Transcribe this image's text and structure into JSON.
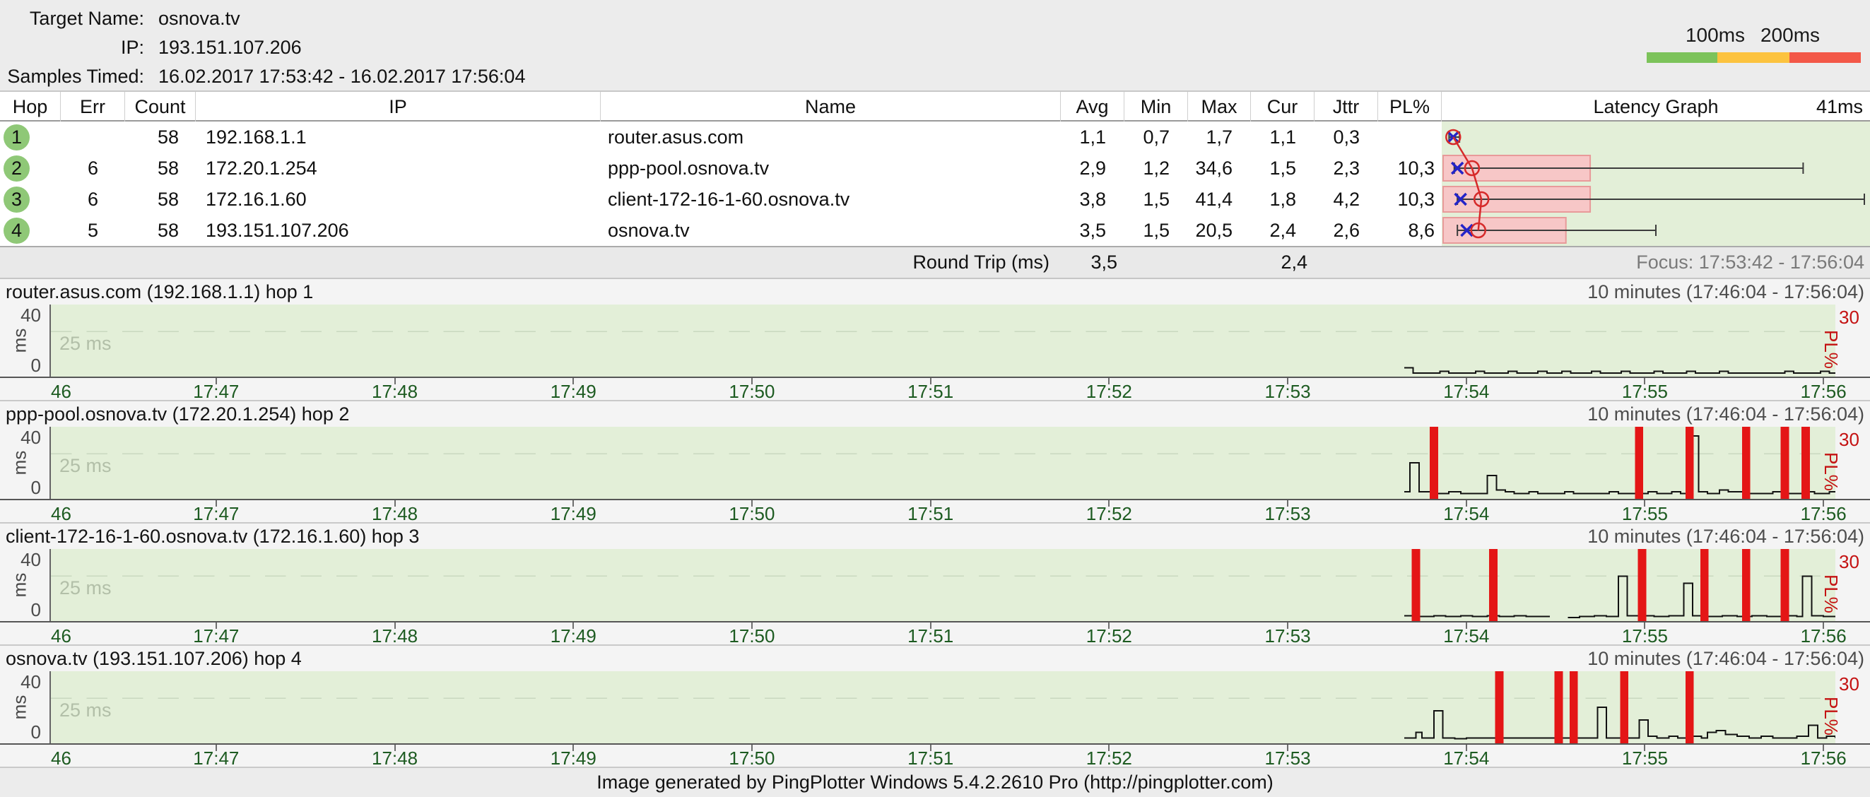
{
  "header": {
    "fields": [
      {
        "label": "Target Name:",
        "value": "osnova.tv"
      },
      {
        "label": "IP:",
        "value": "193.151.107.206"
      },
      {
        "label": "Samples Timed:",
        "value": "16.02.2017 17:53:42 - 16.02.2017 17:56:04"
      }
    ],
    "legend": {
      "label_100": "100ms",
      "label_200": "200ms",
      "good_color": "#7cc35a",
      "warn_color": "#fcc33f",
      "bad_color": "#f35848"
    }
  },
  "table": {
    "columns": {
      "hop": "Hop",
      "err": "Err",
      "count": "Count",
      "ip": "IP",
      "name": "Name",
      "avg": "Avg",
      "min": "Min",
      "max": "Max",
      "cur": "Cur",
      "jttr": "Jttr",
      "pl": "PL%",
      "latency": "Latency Graph",
      "scale": "41ms"
    },
    "rows": [
      {
        "hop": "1",
        "err": "",
        "count": "58",
        "ip": "192.168.1.1",
        "name": "router.asus.com",
        "avg": "1,1",
        "min": "0,7",
        "max": "1,7",
        "cur": "1,1",
        "jttr": "0,3",
        "pl": ""
      },
      {
        "hop": "2",
        "err": "6",
        "count": "58",
        "ip": "172.20.1.254",
        "name": "ppp-pool.osnova.tv",
        "avg": "2,9",
        "min": "1,2",
        "max": "34,6",
        "cur": "1,5",
        "jttr": "2,3",
        "pl": "10,3"
      },
      {
        "hop": "3",
        "err": "6",
        "count": "58",
        "ip": "172.16.1.60",
        "name": "client-172-16-1-60.osnova.tv",
        "avg": "3,8",
        "min": "1,5",
        "max": "41,4",
        "cur": "1,8",
        "jttr": "4,2",
        "pl": "10,3"
      },
      {
        "hop": "4",
        "err": "5",
        "count": "58",
        "ip": "193.151.107.206",
        "name": "osnova.tv",
        "avg": "3,5",
        "min": "1,5",
        "max": "20,5",
        "cur": "2,4",
        "jttr": "2,6",
        "pl": "8,6"
      }
    ],
    "summary": {
      "label": "Round Trip (ms)",
      "avg": "3,5",
      "cur": "2,4",
      "focus": "Focus: 17:53:42 - 17:56:04"
    }
  },
  "colors": {
    "loss": "#e41616",
    "trace": "#111111",
    "gridline": "#c9d8bf",
    "pink_fill": "#f7c7c7",
    "pink_stroke": "#e89a9a",
    "whisker": "#3c3c3c",
    "cur_marker": "#2424c8",
    "avg_marker": "#d62a2a",
    "plot_bg": "#e3efd8"
  },
  "chart_data": [
    {
      "type": "latency-summary-bars",
      "scale_label": "41ms",
      "scale_ms": 41,
      "pl_scale_max": 30,
      "hops": [
        {
          "hop": 1,
          "min": 0.7,
          "max": 1.7,
          "avg": 1.1,
          "cur": 1.1,
          "pl": 0
        },
        {
          "hop": 2,
          "min": 1.2,
          "max": 34.6,
          "avg": 2.9,
          "cur": 1.5,
          "pl": 10.3
        },
        {
          "hop": 3,
          "min": 1.5,
          "max": 41.4,
          "avg": 3.8,
          "cur": 1.8,
          "pl": 10.3
        },
        {
          "hop": 4,
          "min": 1.5,
          "max": 20.5,
          "avg": 3.5,
          "cur": 2.4,
          "pl": 8.6
        }
      ]
    },
    {
      "type": "line",
      "title": "router.asus.com (192.168.1.1) hop 1",
      "range_label": "10 minutes (17:46:04 - 17:56:04)",
      "ylabel": "ms",
      "ylim": [
        0,
        40
      ],
      "y_top_label": "40",
      "y_bottom_label": "0",
      "gridline_ms": 25,
      "gridline_label": "25 ms",
      "pl_max_label": "30",
      "pl_axis_label": "PL%",
      "x_start_label": "46",
      "x_ticks": [
        "17:47",
        "17:48",
        "17:49",
        "17:50",
        "17:51",
        "17:52",
        "17:53",
        "17:54",
        "17:55",
        "17:56"
      ],
      "tick_seconds": [
        56,
        116,
        176,
        236,
        296,
        356,
        416,
        476,
        536,
        596
      ],
      "x_range_seconds": [
        0,
        600
      ],
      "loss_seconds": [],
      "segments": [
        [
          [
            455,
            5
          ],
          [
            458,
            2
          ],
          [
            465,
            2
          ],
          [
            467,
            3
          ],
          [
            470,
            2
          ],
          [
            477,
            2
          ],
          [
            479,
            3
          ],
          [
            482,
            2
          ],
          [
            488,
            2
          ],
          [
            490,
            3
          ],
          [
            493,
            2
          ],
          [
            498,
            2
          ],
          [
            500,
            3
          ],
          [
            503,
            2
          ],
          [
            508,
            3
          ],
          [
            511,
            2
          ],
          [
            516,
            2
          ],
          [
            518,
            3
          ],
          [
            521,
            2
          ],
          [
            526,
            2
          ],
          [
            528,
            3
          ],
          [
            531,
            2
          ],
          [
            537,
            2
          ],
          [
            539,
            3
          ],
          [
            542,
            2
          ],
          [
            548,
            2
          ],
          [
            550,
            3
          ],
          [
            553,
            2
          ],
          [
            559,
            2
          ],
          [
            561,
            3
          ],
          [
            564,
            2
          ],
          [
            571,
            2
          ],
          [
            577,
            2
          ],
          [
            583,
            3
          ],
          [
            586,
            2
          ],
          [
            592,
            2
          ],
          [
            595,
            3
          ],
          [
            598,
            2
          ],
          [
            600,
            2
          ]
        ]
      ]
    },
    {
      "type": "line",
      "title": "ppp-pool.osnova.tv (172.20.1.254) hop 2",
      "range_label": "10 minutes (17:46:04 - 17:56:04)",
      "ylabel": "ms",
      "ylim": [
        0,
        40
      ],
      "y_top_label": "40",
      "y_bottom_label": "0",
      "gridline_ms": 25,
      "gridline_label": "25 ms",
      "pl_max_label": "30",
      "pl_axis_label": "PL%",
      "x_start_label": "46",
      "x_ticks": [
        "17:47",
        "17:48",
        "17:49",
        "17:50",
        "17:51",
        "17:52",
        "17:53",
        "17:54",
        "17:55",
        "17:56"
      ],
      "tick_seconds": [
        56,
        116,
        176,
        236,
        296,
        356,
        416,
        476,
        536,
        596
      ],
      "x_range_seconds": [
        0,
        600
      ],
      "loss_seconds": [
        465,
        534,
        551,
        570,
        583,
        590
      ],
      "segments": [
        [
          [
            455,
            4
          ],
          [
            457,
            20
          ],
          [
            460,
            4
          ],
          [
            464,
            3
          ],
          [
            470,
            4
          ],
          [
            474,
            3
          ],
          [
            483,
            13
          ],
          [
            486,
            5
          ],
          [
            489,
            4
          ],
          [
            492,
            3
          ],
          [
            497,
            4
          ],
          [
            500,
            3
          ],
          [
            506,
            3
          ],
          [
            509,
            4
          ],
          [
            512,
            3
          ],
          [
            519,
            3
          ],
          [
            524,
            4
          ],
          [
            527,
            3
          ],
          [
            533,
            3
          ],
          [
            537,
            4
          ],
          [
            540,
            3
          ],
          [
            545,
            4
          ],
          [
            548,
            3
          ],
          [
            551,
            35
          ],
          [
            554,
            4
          ],
          [
            557,
            3
          ],
          [
            561,
            5
          ],
          [
            564,
            4
          ],
          [
            569,
            3
          ],
          [
            574,
            3
          ],
          [
            579,
            4
          ],
          [
            583,
            3
          ],
          [
            589,
            4
          ],
          [
            593,
            3
          ],
          [
            598,
            4
          ],
          [
            600,
            4
          ]
        ]
      ]
    },
    {
      "type": "line",
      "title": "client-172-16-1-60.osnova.tv (172.16.1.60) hop 3",
      "range_label": "10 minutes (17:46:04 - 17:56:04)",
      "ylabel": "ms",
      "ylim": [
        0,
        40
      ],
      "y_top_label": "40",
      "y_bottom_label": "0",
      "gridline_ms": 25,
      "gridline_label": "25 ms",
      "pl_max_label": "30",
      "pl_axis_label": "PL%",
      "x_start_label": "46",
      "x_ticks": [
        "17:47",
        "17:48",
        "17:49",
        "17:50",
        "17:51",
        "17:52",
        "17:53",
        "17:54",
        "17:55",
        "17:56"
      ],
      "tick_seconds": [
        56,
        116,
        176,
        236,
        296,
        356,
        416,
        476,
        536,
        596
      ],
      "x_range_seconds": [
        0,
        600
      ],
      "loss_seconds": [
        459,
        485,
        535,
        556,
        570,
        583
      ],
      "segments": [
        [
          [
            455,
            3
          ],
          [
            460,
            2.5
          ],
          [
            465,
            3
          ],
          [
            469,
            2.5
          ],
          [
            474,
            3
          ],
          [
            478,
            2.5
          ],
          [
            483,
            3
          ],
          [
            487,
            2.5
          ],
          [
            492,
            3
          ],
          [
            496,
            2.5
          ],
          [
            504,
            2.5
          ]
        ],
        [
          [
            510,
            2
          ],
          [
            514,
            2.5
          ],
          [
            519,
            3
          ],
          [
            523,
            2.5
          ],
          [
            527,
            25
          ],
          [
            530,
            3
          ],
          [
            534,
            3
          ],
          [
            539,
            2.5
          ],
          [
            544,
            3
          ],
          [
            549,
            21
          ],
          [
            552,
            3
          ],
          [
            557,
            2.5
          ],
          [
            562,
            3
          ],
          [
            567,
            2.5
          ],
          [
            572,
            3
          ],
          [
            577,
            2.5
          ],
          [
            582,
            3
          ],
          [
            587,
            2.5
          ],
          [
            589,
            25
          ],
          [
            592,
            3
          ],
          [
            596,
            2.5
          ],
          [
            600,
            3
          ]
        ]
      ]
    },
    {
      "type": "line",
      "title": "osnova.tv (193.151.107.206) hop 4",
      "range_label": "10 minutes (17:46:04 - 17:56:04)",
      "ylabel": "ms",
      "ylim": [
        0,
        40
      ],
      "y_top_label": "40",
      "y_bottom_label": "0",
      "gridline_ms": 25,
      "gridline_label": "25 ms",
      "pl_max_label": "30",
      "pl_axis_label": "PL%",
      "x_start_label": "46",
      "x_ticks": [
        "17:47",
        "17:48",
        "17:49",
        "17:50",
        "17:51",
        "17:52",
        "17:53",
        "17:54",
        "17:55",
        "17:56"
      ],
      "tick_seconds": [
        56,
        116,
        176,
        236,
        296,
        356,
        416,
        476,
        536,
        596
      ],
      "x_range_seconds": [
        0,
        600
      ],
      "loss_seconds": [
        487,
        507,
        512,
        529,
        551
      ],
      "segments": [
        [
          [
            455,
            3
          ],
          [
            459,
            6
          ],
          [
            461,
            3
          ],
          [
            465,
            18
          ],
          [
            468,
            3
          ],
          [
            472,
            2.5
          ],
          [
            476,
            3
          ],
          [
            480,
            3
          ],
          [
            485,
            3
          ],
          [
            489,
            3
          ],
          [
            494,
            3
          ],
          [
            498,
            3
          ],
          [
            503,
            3
          ],
          [
            508,
            3
          ],
          [
            513,
            3
          ],
          [
            517,
            3
          ],
          [
            520,
            20
          ],
          [
            523,
            3
          ],
          [
            527,
            3
          ],
          [
            531,
            3
          ],
          [
            534,
            13
          ],
          [
            537,
            4
          ],
          [
            540,
            3
          ],
          [
            544,
            4
          ],
          [
            547,
            3
          ],
          [
            551,
            4
          ],
          [
            555,
            3
          ],
          [
            557,
            6
          ],
          [
            560,
            7
          ],
          [
            563,
            5
          ],
          [
            567,
            4
          ],
          [
            571,
            3
          ],
          [
            575,
            4
          ],
          [
            579,
            3
          ],
          [
            583,
            3
          ],
          [
            587,
            4
          ],
          [
            591,
            10
          ],
          [
            594,
            3
          ],
          [
            597,
            4
          ],
          [
            600,
            3
          ]
        ]
      ]
    }
  ],
  "footer": {
    "text": "Image generated by PingPlotter Windows 5.4.2.2610 Pro (http://pingplotter.com)"
  }
}
